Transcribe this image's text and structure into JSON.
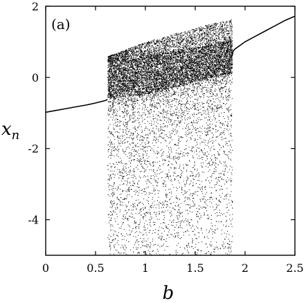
{
  "chart_data": {
    "type": "scatter",
    "panel_label": "(a)",
    "xlabel": "b",
    "ylabel": {
      "base": "x",
      "subscript": "n"
    },
    "xlim": [
      0,
      2.5
    ],
    "ylim": [
      -5,
      2
    ],
    "x_ticks": [
      0,
      0.5,
      1,
      1.5,
      2,
      2.5
    ],
    "x_tick_labels": [
      "0",
      "0.5",
      "1",
      "1.5",
      "2",
      "2.5"
    ],
    "y_ticks": [
      2,
      0,
      -2,
      -4
    ],
    "y_tick_labels": [
      "2",
      "0",
      "-2",
      "-4"
    ],
    "grid": false,
    "legend": "none",
    "color": "#000000",
    "periodic_branch_left": [
      [
        0,
        -0.98
      ],
      [
        0.1,
        -0.93
      ],
      [
        0.2,
        -0.88
      ],
      [
        0.3,
        -0.83
      ],
      [
        0.4,
        -0.78
      ],
      [
        0.5,
        -0.72
      ],
      [
        0.6,
        -0.65
      ],
      [
        0.62,
        -0.62
      ]
    ],
    "periodic_branch_right": [
      [
        1.87,
        0.6
      ],
      [
        1.88,
        0.74
      ],
      [
        1.9,
        0.8
      ],
      [
        2.0,
        1.0
      ],
      [
        2.1,
        1.15
      ],
      [
        2.2,
        1.3
      ],
      [
        2.3,
        1.45
      ],
      [
        2.4,
        1.6
      ],
      [
        2.5,
        1.72
      ]
    ],
    "chaotic_band": {
      "b_range": [
        0.62,
        1.87
      ],
      "dense_core_lower": [
        [
          0.62,
          -0.55
        ],
        [
          1.0,
          -0.45
        ],
        [
          1.5,
          -0.1
        ],
        [
          1.87,
          0.15
        ]
      ],
      "dense_core_upper": [
        [
          0.62,
          0.45
        ],
        [
          1.0,
          0.6
        ],
        [
          1.5,
          0.85
        ],
        [
          1.87,
          1.05
        ]
      ],
      "upper_envelope": [
        [
          0.62,
          0.6
        ],
        [
          1.0,
          1.0
        ],
        [
          1.5,
          1.4
        ],
        [
          1.87,
          1.65
        ]
      ],
      "lower_envelope": -5
    }
  }
}
